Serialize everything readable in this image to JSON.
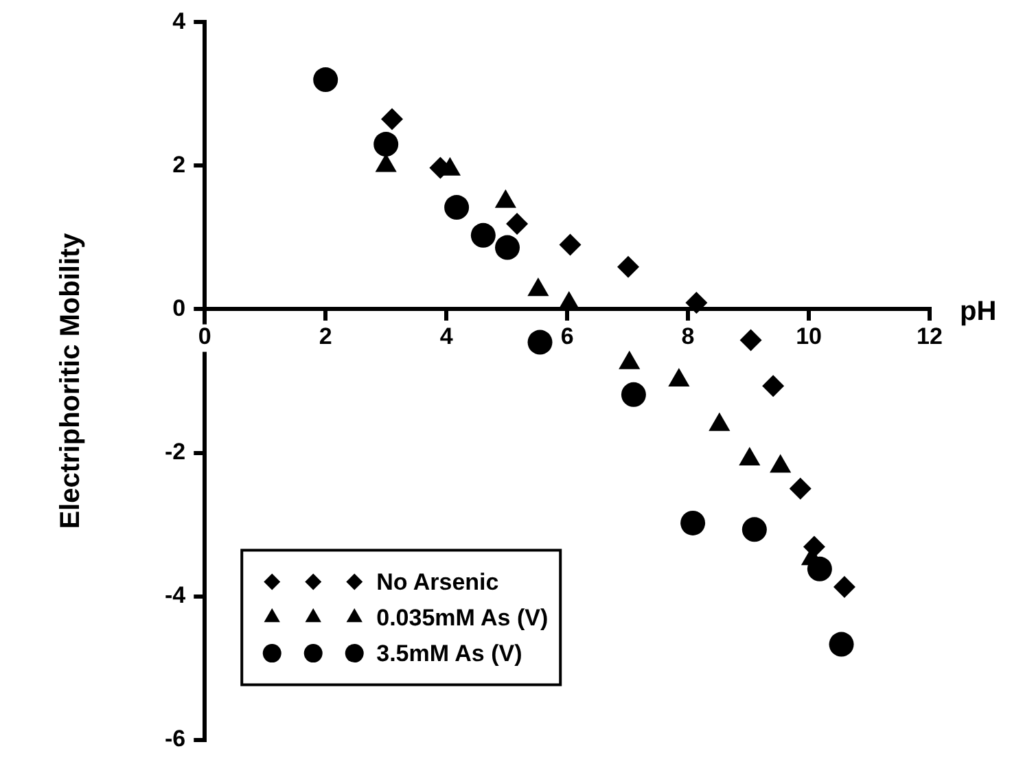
{
  "chart_data": {
    "type": "scatter",
    "xlabel": "pH",
    "ylabel": "Electriphoritic Mobility",
    "xlim": [
      0,
      12
    ],
    "xticks": [
      0,
      2,
      4,
      6,
      8,
      10,
      12
    ],
    "ylim": [
      -6,
      4
    ],
    "yticks": [
      -6,
      -4,
      -2,
      0,
      2,
      4
    ],
    "grid": false,
    "legend": "bottom left",
    "series": [
      {
        "name": "No Arsenic",
        "color": "#000000",
        "marker": "diamond",
        "x": [
          3.1,
          3.9,
          5.17,
          6.05,
          7.01,
          8.14,
          9.04,
          9.41,
          9.86,
          10.09,
          10.59
        ],
        "values": [
          2.65,
          1.97,
          1.19,
          0.9,
          0.59,
          0.09,
          -0.43,
          -1.07,
          -2.5,
          -3.31,
          -3.87
        ]
      },
      {
        "name": "0.035mM As (V)",
        "color": "#000000",
        "marker": "triangle",
        "x": [
          3.0,
          4.06,
          4.98,
          5.52,
          6.03,
          7.03,
          7.85,
          8.52,
          9.02,
          9.53,
          10.05
        ],
        "values": [
          2.0,
          1.95,
          1.5,
          0.27,
          0.08,
          -0.75,
          -0.99,
          -1.61,
          -2.09,
          -2.19,
          -3.48
        ]
      },
      {
        "name": "3.5mM As (V)",
        "color": "#000000",
        "marker": "circle",
        "x": [
          2.0,
          3.0,
          4.17,
          4.61,
          5.01,
          5.55,
          7.1,
          8.08,
          9.1,
          10.18,
          10.54
        ],
        "values": [
          3.2,
          2.3,
          1.42,
          1.03,
          0.86,
          -0.46,
          -1.19,
          -2.98,
          -3.07,
          -3.62,
          -4.67
        ]
      }
    ]
  }
}
